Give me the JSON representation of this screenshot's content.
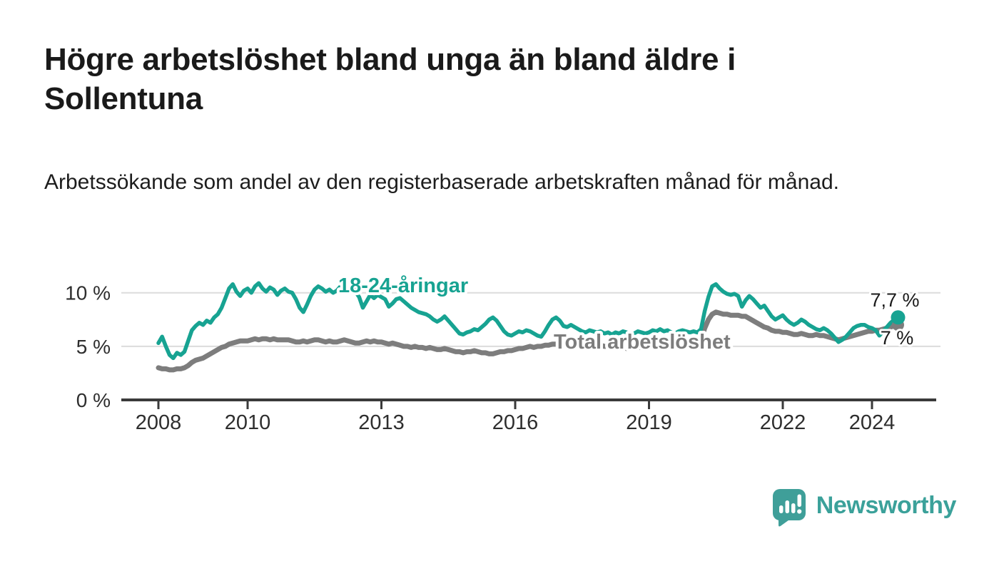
{
  "header": {
    "title": "Högre arbetslöshet bland unga än bland äldre i Sollentuna",
    "subtitle": "Arbetssökande som andel av den registerbaserade arbetskraften månad för månad."
  },
  "chart": {
    "series_label_youth": "18-24-åringar",
    "series_label_total": "Total arbetslöshet",
    "end_label_youth": "7,7 %",
    "end_label_total": "7 %"
  },
  "footer": {
    "brand": "Newsworthy",
    "logo_icon": "newsworthy-speech-bubble-bar-chart-icon"
  },
  "colors": {
    "youth": "#17a392",
    "total": "#7d7d7d",
    "grid": "#dcdcdc",
    "axis": "#3a3a3a",
    "text": "#1a1a1a",
    "brand": "#3ba19a"
  },
  "chart_data": {
    "type": "line",
    "title": "Högre arbetslöshet bland unga än bland äldre i Sollentuna",
    "subtitle": "Arbetssökande som andel av den registerbaserade arbetskraften månad för månad.",
    "unit": "%",
    "frequency": "monthly",
    "x_start": "2008-01",
    "x_end": "2024-08",
    "x_tick_labels": [
      "2008",
      "2010",
      "2013",
      "2016",
      "2019",
      "2022",
      "2024"
    ],
    "y_tick_labels": [
      "0 %",
      "5 %",
      "10 %"
    ],
    "y_gridlines": [
      5,
      10
    ],
    "ylim": [
      0,
      11.5
    ],
    "grid": "horizontal",
    "legend_position": "inline-labels",
    "end_value_labels": {
      "18-24-åringar": "7,7 %",
      "Total arbetslöshet": "7 %"
    },
    "series": [
      {
        "name": "18-24-åringar",
        "color": "#17a392",
        "last_value": 7.7,
        "values": [
          5.3,
          5.9,
          5.0,
          4.2,
          3.9,
          4.4,
          4.2,
          4.5,
          5.5,
          6.5,
          6.9,
          7.2,
          7.0,
          7.4,
          7.2,
          7.7,
          8.0,
          8.6,
          9.5,
          10.4,
          10.8,
          10.1,
          9.7,
          10.2,
          10.4,
          10.0,
          10.6,
          10.9,
          10.4,
          10.1,
          10.5,
          10.3,
          9.8,
          10.2,
          10.4,
          10.1,
          10.0,
          9.4,
          8.6,
          8.2,
          8.9,
          9.7,
          10.3,
          10.6,
          10.4,
          10.1,
          10.3,
          10.0,
          10.2,
          10.6,
          10.8,
          10.4,
          10.6,
          10.1,
          9.6,
          8.6,
          9.2,
          9.8,
          9.5,
          9.8,
          9.6,
          9.4,
          8.7,
          9.0,
          9.4,
          9.5,
          9.2,
          8.9,
          8.6,
          8.4,
          8.2,
          8.1,
          8.0,
          7.8,
          7.5,
          7.3,
          7.5,
          7.8,
          7.4,
          7.0,
          6.6,
          6.2,
          6.1,
          6.3,
          6.4,
          6.6,
          6.5,
          6.8,
          7.1,
          7.5,
          7.7,
          7.4,
          6.9,
          6.4,
          6.1,
          6.0,
          6.2,
          6.4,
          6.3,
          6.5,
          6.4,
          6.2,
          6.0,
          5.9,
          6.4,
          7.0,
          7.5,
          7.7,
          7.4,
          6.9,
          6.8,
          7.0,
          6.8,
          6.6,
          6.4,
          6.3,
          6.5,
          6.4,
          6.3,
          6.4,
          6.2,
          6.3,
          6.1,
          6.3,
          6.2,
          6.4,
          6.3,
          6.1,
          6.2,
          6.4,
          6.3,
          6.2,
          6.3,
          6.5,
          6.4,
          6.6,
          6.4,
          6.5,
          6.3,
          6.2,
          6.4,
          6.5,
          6.4,
          6.3,
          6.4,
          6.3,
          6.6,
          8.3,
          9.6,
          10.6,
          10.8,
          10.4,
          10.1,
          9.9,
          9.8,
          9.9,
          9.7,
          8.7,
          9.3,
          9.7,
          9.4,
          9.0,
          8.6,
          8.8,
          8.3,
          7.8,
          7.5,
          7.7,
          7.9,
          7.5,
          7.2,
          7.0,
          7.2,
          7.5,
          7.3,
          7.0,
          6.8,
          6.6,
          6.5,
          6.7,
          6.5,
          6.2,
          5.8,
          5.4,
          5.6,
          5.9,
          6.3,
          6.7,
          6.9,
          7.0,
          7.0,
          6.8,
          6.7,
          6.5,
          6.0,
          6.4,
          6.8,
          7.2,
          7.5,
          7.7
        ]
      },
      {
        "name": "Total arbetslöshet",
        "color": "#7d7d7d",
        "last_value": 7.0,
        "values": [
          3.0,
          2.9,
          2.9,
          2.8,
          2.8,
          2.9,
          2.9,
          3.0,
          3.2,
          3.5,
          3.7,
          3.8,
          3.9,
          4.1,
          4.3,
          4.5,
          4.7,
          4.9,
          5.0,
          5.2,
          5.3,
          5.4,
          5.5,
          5.5,
          5.5,
          5.6,
          5.7,
          5.6,
          5.7,
          5.7,
          5.6,
          5.7,
          5.6,
          5.6,
          5.6,
          5.6,
          5.5,
          5.4,
          5.4,
          5.5,
          5.4,
          5.5,
          5.6,
          5.6,
          5.5,
          5.4,
          5.5,
          5.4,
          5.4,
          5.5,
          5.6,
          5.5,
          5.4,
          5.3,
          5.3,
          5.4,
          5.5,
          5.4,
          5.5,
          5.4,
          5.4,
          5.3,
          5.2,
          5.3,
          5.2,
          5.1,
          5.0,
          5.0,
          4.9,
          5.0,
          4.9,
          4.9,
          4.8,
          4.9,
          4.8,
          4.7,
          4.7,
          4.8,
          4.7,
          4.6,
          4.5,
          4.5,
          4.4,
          4.5,
          4.5,
          4.6,
          4.5,
          4.4,
          4.4,
          4.3,
          4.3,
          4.4,
          4.5,
          4.5,
          4.6,
          4.6,
          4.7,
          4.8,
          4.8,
          4.9,
          5.0,
          4.9,
          5.0,
          5.0,
          5.1,
          5.1,
          5.2,
          5.2,
          5.1,
          5.2,
          5.1,
          5.1,
          5.0,
          5.1,
          5.0,
          5.1,
          5.1,
          5.2,
          5.1,
          5.1,
          5.0,
          5.0,
          4.9,
          5.0,
          4.9,
          4.9,
          4.8,
          4.9,
          4.8,
          4.9,
          4.9,
          5.0,
          4.9,
          5.0,
          5.0,
          5.1,
          5.0,
          5.1,
          5.1,
          5.2,
          5.2,
          5.3,
          5.3,
          5.4,
          5.3,
          5.4,
          5.6,
          6.7,
          7.5,
          8.0,
          8.2,
          8.1,
          8.0,
          8.0,
          7.9,
          7.9,
          7.9,
          7.8,
          7.8,
          7.6,
          7.4,
          7.2,
          7.0,
          6.8,
          6.7,
          6.5,
          6.4,
          6.4,
          6.3,
          6.3,
          6.2,
          6.1,
          6.1,
          6.2,
          6.1,
          6.0,
          6.0,
          6.1,
          6.0,
          6.0,
          5.9,
          5.8,
          5.7,
          5.6,
          5.7,
          5.8,
          5.9,
          6.0,
          6.1,
          6.2,
          6.3,
          6.4,
          6.4,
          6.5,
          6.5,
          6.6,
          6.7,
          6.8,
          6.9,
          7.0
        ]
      }
    ]
  }
}
